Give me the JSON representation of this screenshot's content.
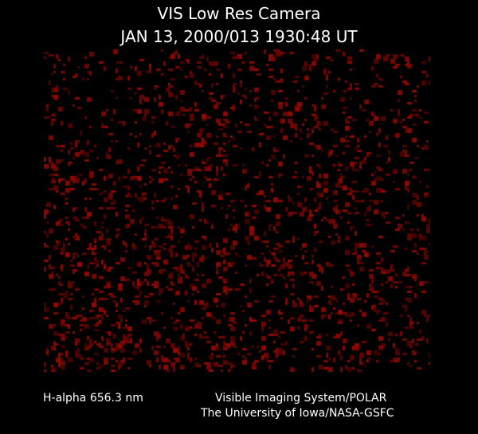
{
  "header": {
    "title": "VIS Low Res Camera",
    "timestamp": "JAN 13, 2000/013 1930:48 UT"
  },
  "footer": {
    "filter": "H-alpha 656.3 nm",
    "instrument": "Visible Imaging System/POLAR",
    "institution": "The University of Iowa/NASA-GSFC"
  },
  "image": {
    "colormap_color": "#8b0a00",
    "background": "#000000"
  }
}
